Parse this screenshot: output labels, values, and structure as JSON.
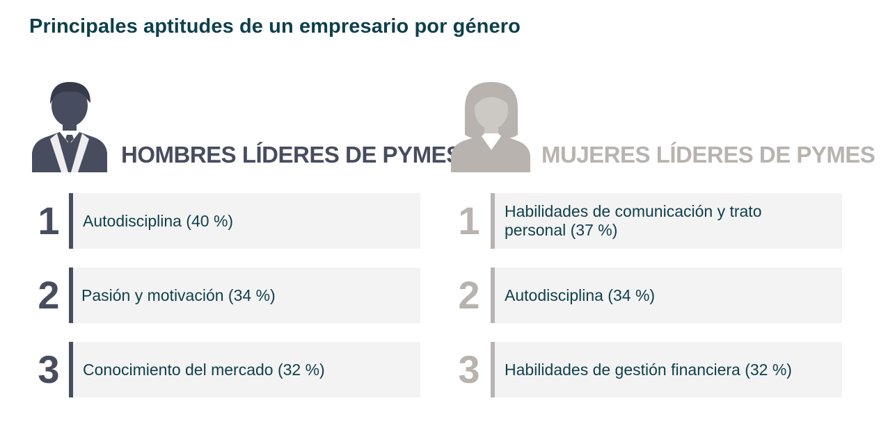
{
  "title": "Principales aptitudes de un empresario por género",
  "colors": {
    "title": "#0e3f4c",
    "men_accent": "#474d5e",
    "women_accent": "#b8b3ae",
    "box_background": "#f4f3f3",
    "item_text": "#0e3f4c"
  },
  "men": {
    "icon": "man-avatar-icon",
    "heading": "HOMBRES LÍDERES DE PYMES",
    "items": [
      {
        "rank": "1",
        "text": "Autodisciplina (40 %)"
      },
      {
        "rank": "2",
        "text": "Pasión y motivación (34 %)"
      },
      {
        "rank": "3",
        "text": "Conocimiento del mercado (32 %)"
      }
    ]
  },
  "women": {
    "icon": "woman-avatar-icon",
    "heading": "MUJERES LÍDERES DE PYMES",
    "items": [
      {
        "rank": "1",
        "text": "Habilidades de comunicación y trato personal (37 %)"
      },
      {
        "rank": "2",
        "text": "Autodisciplina (34 %)"
      },
      {
        "rank": "3",
        "text": "Habilidades de gestión financiera (32 %)"
      }
    ]
  }
}
